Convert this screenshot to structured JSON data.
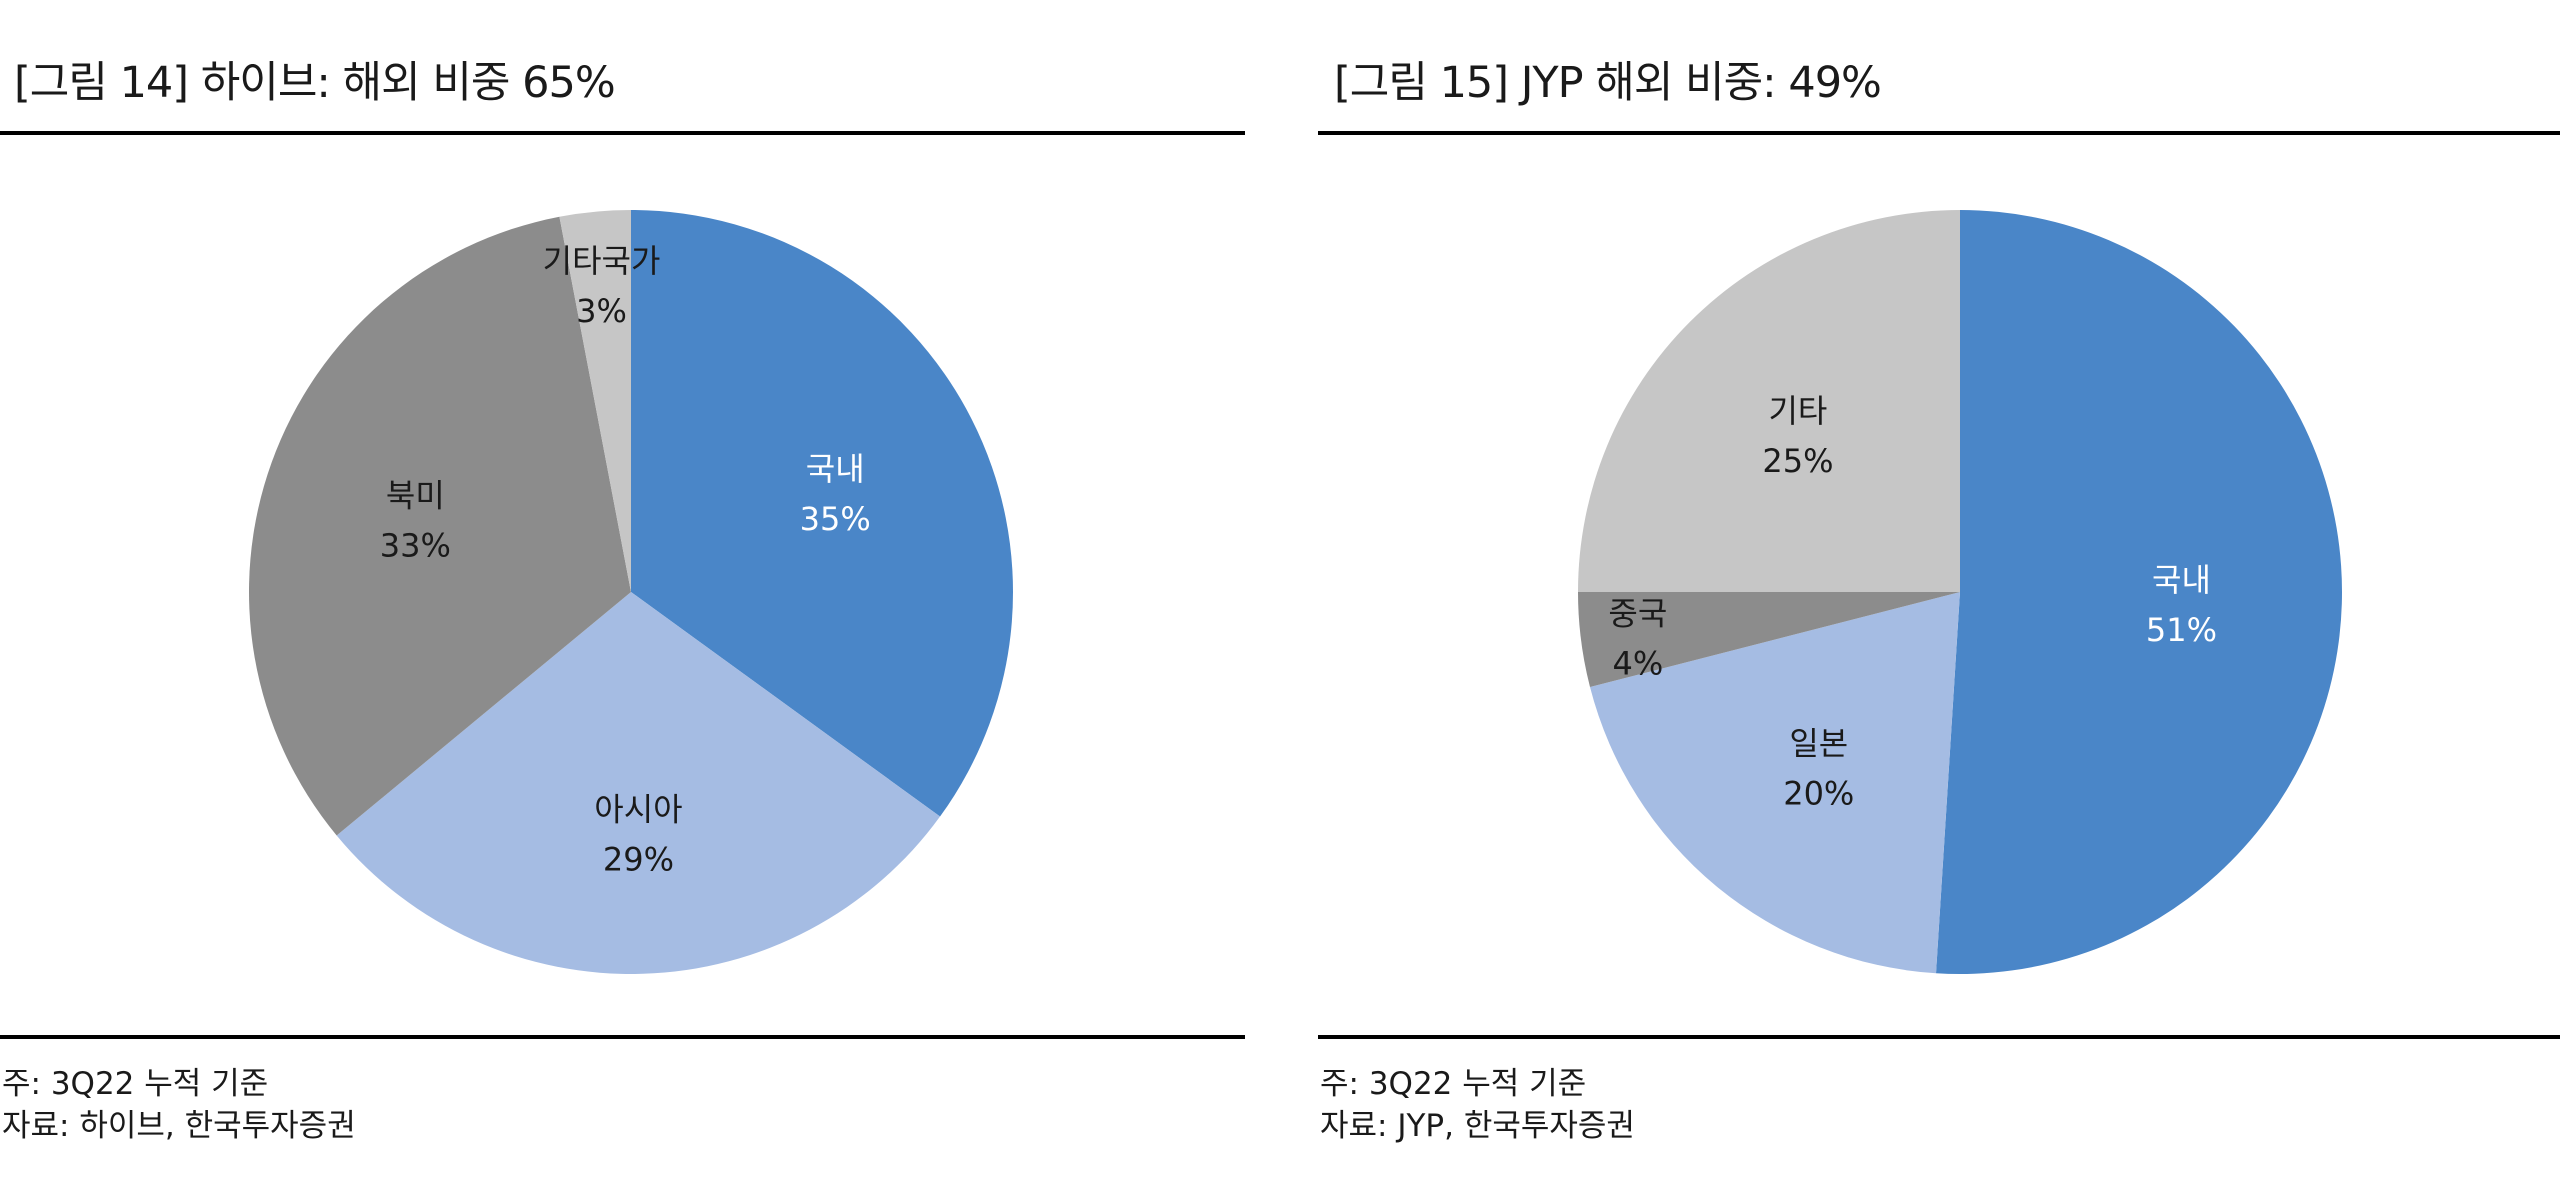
{
  "chart_data": [
    {
      "type": "pie",
      "title": "[그림 14] 하이브: 해외 비중 65%",
      "categories": [
        "국내",
        "아시아",
        "북미",
        "기타국가"
      ],
      "values": [
        35,
        29,
        33,
        3
      ],
      "value_labels": [
        "35%",
        "29%",
        "33%",
        "3%"
      ],
      "colors": [
        "#4a86c8",
        "#a5bce3",
        "#8c8c8c",
        "#c6c6c6"
      ],
      "label_colors": [
        "#ffffff",
        "#1a1a1a",
        "#1a1a1a",
        "#1a1a1a"
      ],
      "start_angle_deg": 0,
      "direction": "clockwise",
      "note": "주: 3Q22 누적 기준",
      "source": "자료: 하이브, 한국투자증권"
    },
    {
      "type": "pie",
      "title": "[그림 15] JYP 해외 비중: 49%",
      "categories": [
        "국내",
        "일본",
        "중국",
        "기타"
      ],
      "values": [
        51,
        20,
        4,
        25
      ],
      "value_labels": [
        "51%",
        "20%",
        "4%",
        "25%"
      ],
      "colors": [
        "#4a86c8",
        "#a5bce3",
        "#8c8c8c",
        "#c6c6c6"
      ],
      "label_colors": [
        "#ffffff",
        "#1a1a1a",
        "#1a1a1a",
        "#1a1a1a"
      ],
      "start_angle_deg": 0,
      "direction": "clockwise",
      "note": "주: 3Q22 누적 기준",
      "source": "자료: JYP, 한국투자증권"
    }
  ]
}
